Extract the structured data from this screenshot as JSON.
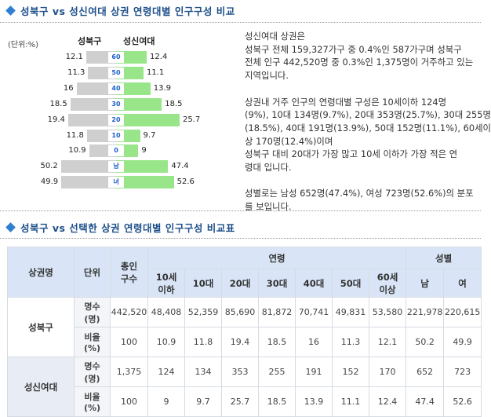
{
  "section1": {
    "title": "성북구 vs 성신여대 상권 연령대별 인구구성 비교",
    "unit_label": "(단위:%)",
    "left_header": "성북구",
    "right_header": "성신여대",
    "rows": [
      {
        "age_label": "60",
        "left": "12.1",
        "right": "12.4"
      },
      {
        "age_label": "50",
        "left": "11.3",
        "right": "11.1"
      },
      {
        "age_label": "40",
        "left": "16",
        "right": "13.9"
      },
      {
        "age_label": "30",
        "left": "18.5",
        "right": "18.5"
      },
      {
        "age_label": "20",
        "left": "19.4",
        "right": "25.7"
      },
      {
        "age_label": "10",
        "left": "11.8",
        "right": "9.7"
      },
      {
        "age_label": "0",
        "left": "10.9",
        "right": "9"
      },
      {
        "age_label": "남",
        "left": "50.2",
        "right": "47.4"
      },
      {
        "age_label": "녀",
        "left": "49.9",
        "right": "52.6"
      }
    ],
    "description": [
      [
        "성신여대 상권은",
        "성북구 전체 159,327가구 중 0.4%인 587가구며 성북구",
        "전체 인구 442,520명 중 0.3%인 1,375명이 거주하고 있는",
        "지역입니다."
      ],
      [
        "상권내 거주 인구의 연령대별 구성은 10세이하 124명",
        "(9%), 10대 134명(9.7%), 20대 353명(25.7%), 30대 255명",
        "(18.5%), 40대 191명(13.9%), 50대 152명(11.1%), 60세이",
        "상 170명(12.4%)이며",
        "성북구 대비 20대가 가장 많고 10세 이하가 가장 적은 연",
        "령대 입니다."
      ],
      [
        "성별로는 남성 652명(47.4%), 여성 723명(52.6%)의 분포",
        "를 보입니다."
      ]
    ]
  },
  "section2": {
    "title": "성북구 vs 선택한 상권 연령대별 인구구성 비교표",
    "headers": {
      "area": "상권명",
      "unit": "단위",
      "total": "총인\n구수",
      "age_group": "연령",
      "ages": [
        "10세\n이하",
        "10대",
        "20대",
        "30대",
        "40대",
        "50대",
        "60세\n이상"
      ],
      "gender_group": "성별",
      "genders": [
        "남",
        "여"
      ]
    },
    "groups": [
      {
        "name": "성북구",
        "rows": [
          {
            "unit": "명수\n(명)",
            "values": [
              "442,520",
              "48,408",
              "52,359",
              "85,690",
              "81,872",
              "70,741",
              "49,831",
              "53,580",
              "221,978",
              "220,615"
            ]
          },
          {
            "unit": "비율\n(%)",
            "values": [
              "100",
              "10.9",
              "11.8",
              "19.4",
              "18.5",
              "16",
              "11.3",
              "12.1",
              "50.2",
              "49.9"
            ]
          }
        ]
      },
      {
        "name": "성신여대",
        "rows": [
          {
            "unit": "명수\n(명)",
            "values": [
              "1,375",
              "124",
              "134",
              "353",
              "255",
              "191",
              "152",
              "170",
              "652",
              "723"
            ]
          },
          {
            "unit": "비율\n(%)",
            "values": [
              "100",
              "9",
              "9.7",
              "25.7",
              "18.5",
              "13.9",
              "11.1",
              "12.4",
              "47.4",
              "52.6"
            ]
          }
        ]
      }
    ]
  },
  "colors": {
    "male_bar": "#cfcfcf",
    "female_bar": "#99e68a",
    "header_bg": "#d9e5f6",
    "title_text": "#1d4f8a",
    "bullet": "#2f7fcf"
  }
}
